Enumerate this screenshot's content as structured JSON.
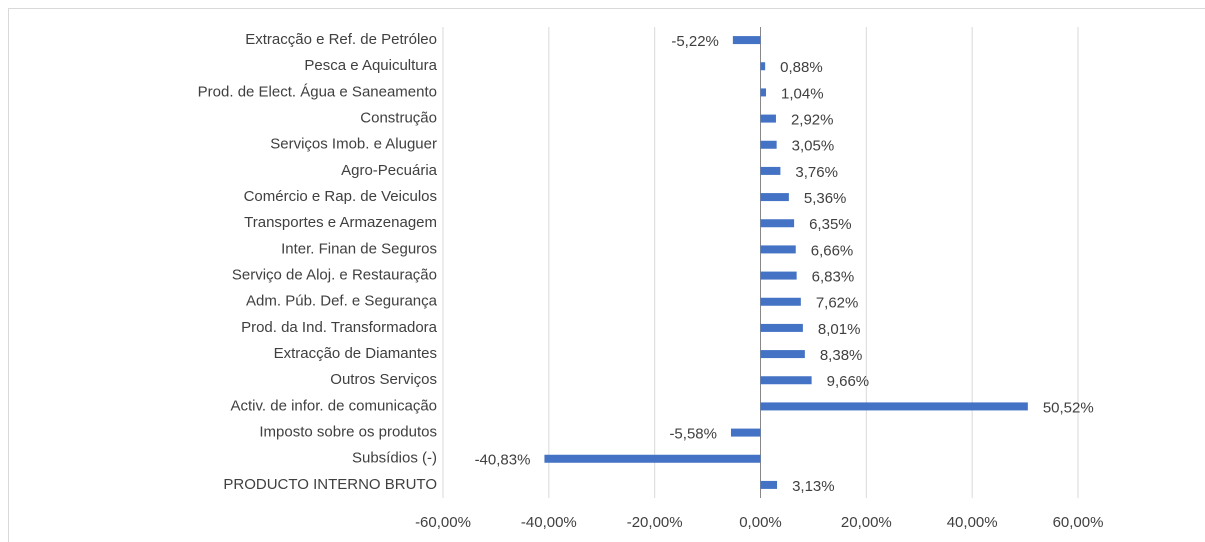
{
  "chart_data": {
    "type": "bar",
    "orientation": "horizontal",
    "categories": [
      "Extracção e Ref. de Petróleo",
      "Pesca e Aquicultura",
      "Prod. de Elect. Água e Saneamento",
      "Construção",
      "Serviços Imob. e Aluguer",
      "Agro-Pecuária",
      "Comércio e Rap. de Veiculos",
      "Transportes e Armazenagem",
      "Inter. Finan de Seguros",
      "Serviço de Aloj. e Restauração",
      "Adm. Púb. Def. e Segurança",
      "Prod. da Ind. Transformadora",
      "Extracção de Diamantes",
      "Outros Serviços",
      "Activ. de infor. de comunicação",
      "Imposto sobre os produtos",
      "Subsídios (-)",
      "PRODUCTO INTERNO BRUTO"
    ],
    "values": [
      -5.22,
      0.88,
      1.04,
      2.92,
      3.05,
      3.76,
      5.36,
      6.35,
      6.66,
      6.83,
      7.62,
      8.01,
      8.38,
      9.66,
      50.52,
      -5.58,
      -40.83,
      3.13
    ],
    "value_labels": [
      "-5,22%",
      "0,88%",
      "1,04%",
      "2,92%",
      "3,05%",
      "3,76%",
      "5,36%",
      "6,35%",
      "6,66%",
      "6,83%",
      "7,62%",
      "8,01%",
      "8,38%",
      "9,66%",
      "50,52%",
      "-5,58%",
      "-40,83%",
      "3,13%"
    ],
    "color": "#4472c4",
    "xlim": [
      -60,
      60
    ],
    "xticks": [
      {
        "value": -60,
        "label": "-60,00%"
      },
      {
        "value": -40,
        "label": "-40,00%"
      },
      {
        "value": -20,
        "label": "-20,00%"
      },
      {
        "value": 0,
        "label": "0,00%"
      },
      {
        "value": 20,
        "label": "20,00%"
      },
      {
        "value": 40,
        "label": "40,00%"
      },
      {
        "value": 60,
        "label": "60,00%"
      }
    ],
    "grid": true
  }
}
